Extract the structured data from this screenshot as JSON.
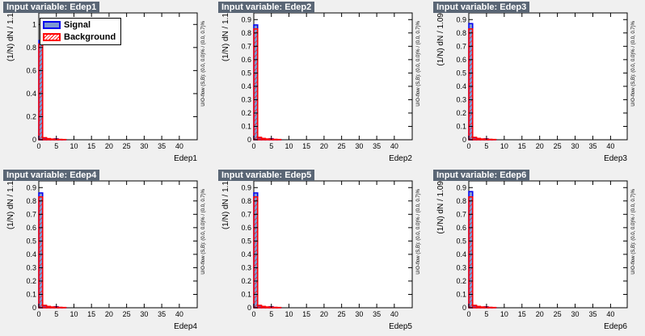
{
  "colors": {
    "signal_fill": "#7d99d1",
    "signal_line": "#0000ee",
    "background_line": "#ff0000",
    "title_bg": "#5a6675",
    "frame_bg": "#ffffff"
  },
  "legend": {
    "signal_label": "Signal",
    "background_label": "Background"
  },
  "chart_data": [
    {
      "type": "bar",
      "title": "Input variable: Edep1",
      "xlabel": "Edep1",
      "ylabel": "(1/N) dN / 1.1",
      "side_label": "U/O-flow (S,B): (0.0, 0.0)% / (0.0, 0.7)%",
      "xlim": [
        0,
        45.1
      ],
      "ylim": [
        0,
        1.1
      ],
      "xticks": [
        0,
        5,
        10,
        15,
        20,
        25,
        30,
        35,
        40
      ],
      "yticks": [
        0,
        0.2,
        0.4,
        0.6,
        0.8,
        1
      ],
      "bin_width": 1.1,
      "show_legend": true,
      "series": [
        {
          "name": "Signal",
          "values": [
            0.86,
            0.015,
            0.008,
            0.004,
            0.008,
            0.002,
            0.001
          ]
        },
        {
          "name": "Background",
          "values": [
            0.83,
            0.018,
            0.01,
            0.006,
            0.005,
            0.003,
            0.002
          ]
        }
      ]
    },
    {
      "type": "bar",
      "title": "Input variable: Edep2",
      "xlabel": "Edep2",
      "ylabel": "(1/N) dN / 1.1",
      "side_label": "U/O-flow (S,B): (0.0, 0.0)% / (0.0, 0.7)%",
      "xlim": [
        0,
        45.1
      ],
      "ylim": [
        0,
        0.95
      ],
      "xticks": [
        0,
        5,
        10,
        15,
        20,
        25,
        30,
        35,
        40
      ],
      "yticks": [
        0,
        0.1,
        0.2,
        0.3,
        0.4,
        0.5,
        0.6,
        0.7,
        0.8,
        0.9
      ],
      "bin_width": 1.1,
      "show_legend": false,
      "series": [
        {
          "name": "Signal",
          "values": [
            0.86,
            0.015,
            0.008,
            0.004,
            0.008,
            0.002,
            0.001
          ]
        },
        {
          "name": "Background",
          "values": [
            0.83,
            0.018,
            0.01,
            0.006,
            0.005,
            0.003,
            0.002
          ]
        }
      ]
    },
    {
      "type": "bar",
      "title": "Input variable: Edep3",
      "xlabel": "Edep3",
      "ylabel": "(1/N) dN / 1.09",
      "side_label": "U/O-flow (S,B): (0.0, 0.0)% / (0.0, 0.7)%",
      "xlim": [
        0,
        44.7
      ],
      "ylim": [
        0,
        0.95
      ],
      "xticks": [
        0,
        5,
        10,
        15,
        20,
        25,
        30,
        35,
        40
      ],
      "yticks": [
        0,
        0.1,
        0.2,
        0.3,
        0.4,
        0.5,
        0.6,
        0.7,
        0.8,
        0.9
      ],
      "bin_width": 1.09,
      "show_legend": false,
      "series": [
        {
          "name": "Signal",
          "values": [
            0.87,
            0.015,
            0.008,
            0.004,
            0.007,
            0.002,
            0.001
          ]
        },
        {
          "name": "Background",
          "values": [
            0.83,
            0.018,
            0.01,
            0.006,
            0.005,
            0.003,
            0.002
          ]
        }
      ]
    },
    {
      "type": "bar",
      "title": "Input variable: Edep4",
      "xlabel": "Edep4",
      "ylabel": "(1/N) dN / 1.1",
      "side_label": "U/O-flow (S,B): (0.0, 0.0)% / (0.0, 0.7)%",
      "xlim": [
        0,
        45.1
      ],
      "ylim": [
        0,
        0.95
      ],
      "xticks": [
        0,
        5,
        10,
        15,
        20,
        25,
        30,
        35,
        40
      ],
      "yticks": [
        0,
        0.1,
        0.2,
        0.3,
        0.4,
        0.5,
        0.6,
        0.7,
        0.8,
        0.9
      ],
      "bin_width": 1.1,
      "show_legend": false,
      "series": [
        {
          "name": "Signal",
          "values": [
            0.86,
            0.015,
            0.008,
            0.004,
            0.008,
            0.002,
            0.001
          ]
        },
        {
          "name": "Background",
          "values": [
            0.83,
            0.018,
            0.01,
            0.006,
            0.005,
            0.003,
            0.002
          ]
        }
      ]
    },
    {
      "type": "bar",
      "title": "Input variable: Edep5",
      "xlabel": "Edep5",
      "ylabel": "(1/N) dN / 1.1",
      "side_label": "U/O-flow (S,B): (0.0, 0.0)% / (0.0, 0.7)%",
      "xlim": [
        0,
        45.1
      ],
      "ylim": [
        0,
        0.95
      ],
      "xticks": [
        0,
        5,
        10,
        15,
        20,
        25,
        30,
        35,
        40
      ],
      "yticks": [
        0,
        0.1,
        0.2,
        0.3,
        0.4,
        0.5,
        0.6,
        0.7,
        0.8,
        0.9
      ],
      "bin_width": 1.1,
      "show_legend": false,
      "series": [
        {
          "name": "Signal",
          "values": [
            0.86,
            0.015,
            0.008,
            0.004,
            0.008,
            0.002,
            0.001
          ]
        },
        {
          "name": "Background",
          "values": [
            0.83,
            0.018,
            0.01,
            0.006,
            0.005,
            0.003,
            0.002
          ]
        }
      ]
    },
    {
      "type": "bar",
      "title": "Input variable: Edep6",
      "xlabel": "Edep6",
      "ylabel": "(1/N) dN / 1.09",
      "side_label": "U/O-flow (S,B): (0.0, 0.0)% / (0.0, 0.7)%",
      "xlim": [
        0,
        44.7
      ],
      "ylim": [
        0,
        0.95
      ],
      "xticks": [
        0,
        5,
        10,
        15,
        20,
        25,
        30,
        35,
        40
      ],
      "yticks": [
        0,
        0.1,
        0.2,
        0.3,
        0.4,
        0.5,
        0.6,
        0.7,
        0.8,
        0.9
      ],
      "bin_width": 1.09,
      "show_legend": false,
      "series": [
        {
          "name": "Signal",
          "values": [
            0.87,
            0.015,
            0.008,
            0.004,
            0.007,
            0.002,
            0.001
          ]
        },
        {
          "name": "Background",
          "values": [
            0.83,
            0.018,
            0.01,
            0.006,
            0.005,
            0.003,
            0.002
          ]
        }
      ]
    }
  ]
}
